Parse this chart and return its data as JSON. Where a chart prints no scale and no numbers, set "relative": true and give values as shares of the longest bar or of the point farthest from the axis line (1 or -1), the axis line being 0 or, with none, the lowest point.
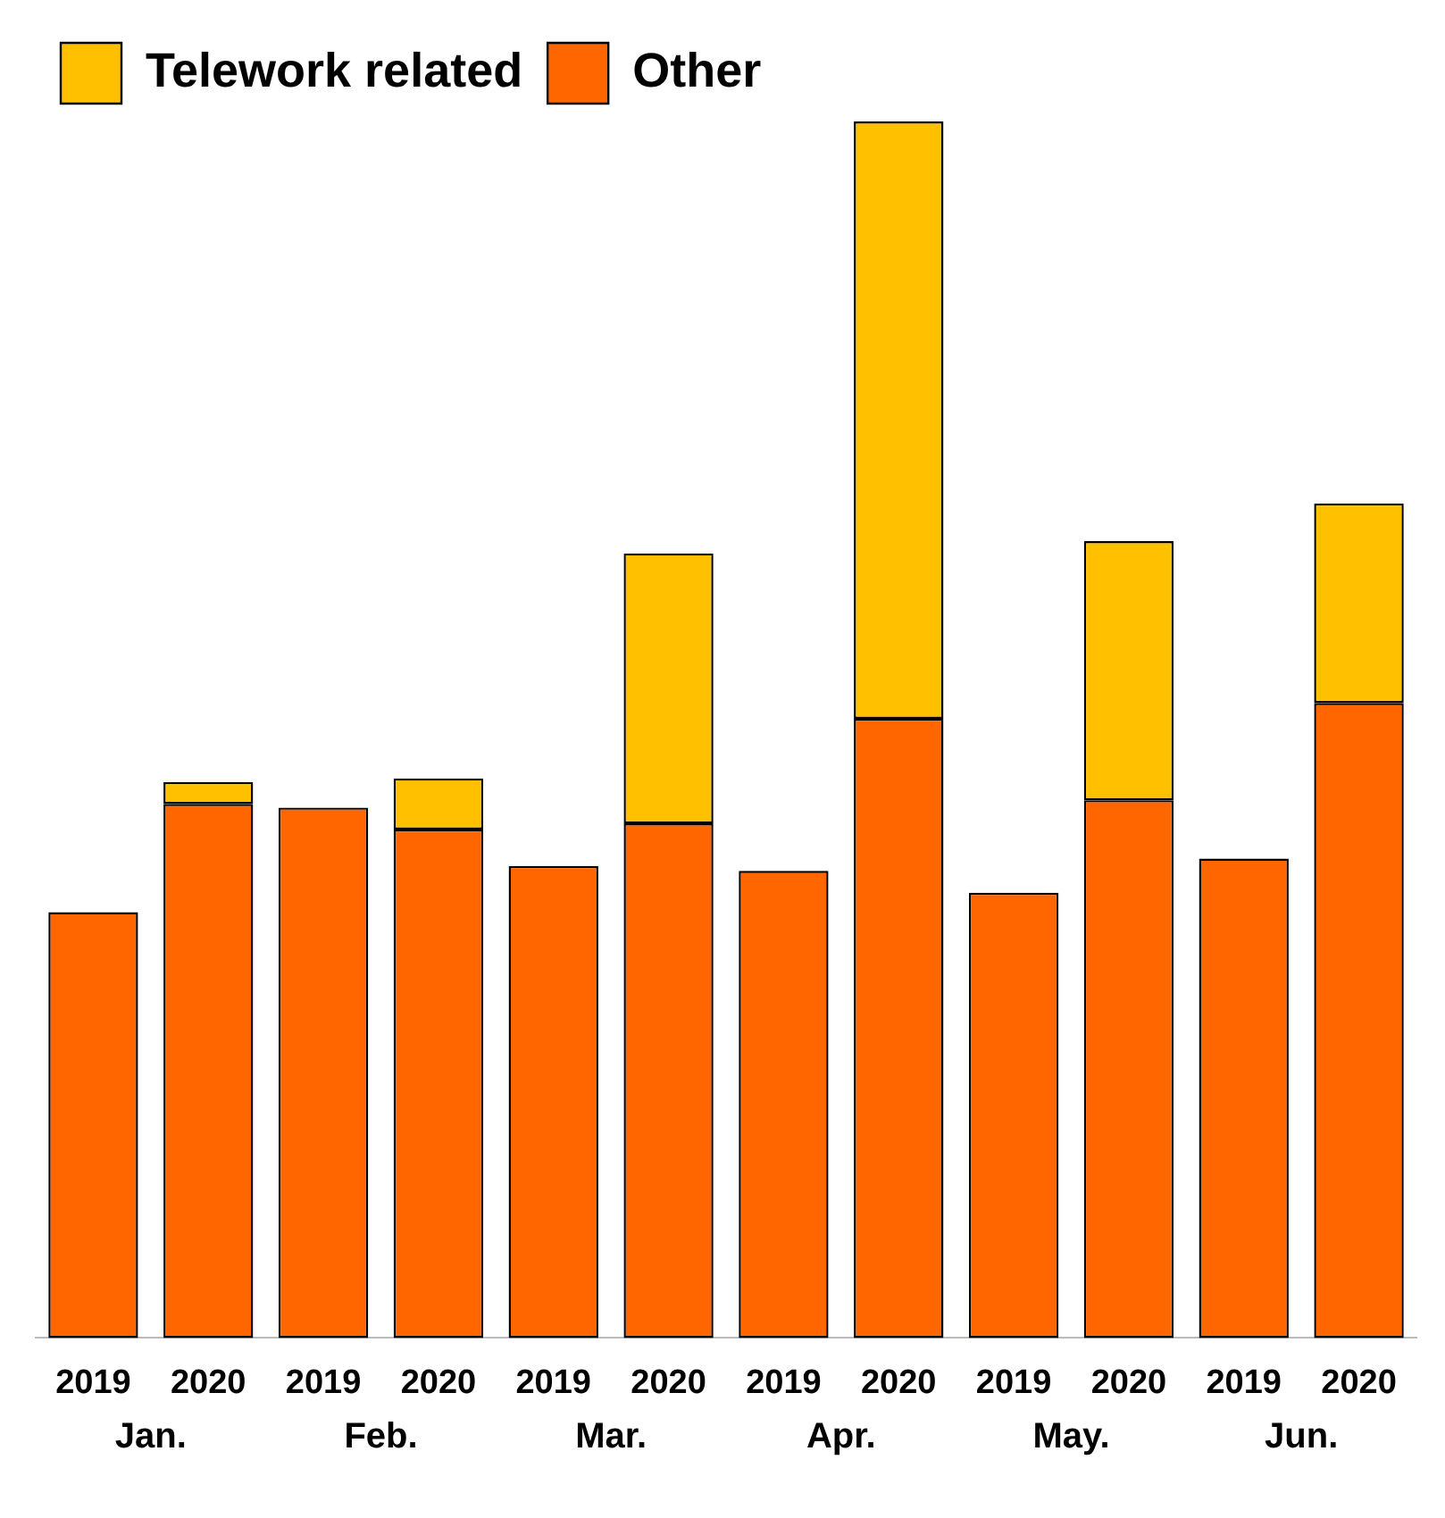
{
  "chart_data": {
    "type": "bar",
    "stacked": true,
    "relative": true,
    "legend": "top left",
    "categories": [
      "2019",
      "2020",
      "2019",
      "2020",
      "2019",
      "2020",
      "2019",
      "2020",
      "2019",
      "2020",
      "2019",
      "2020"
    ],
    "series": [
      {
        "name": "Other",
        "color": "#ff6600",
        "values": [
          0.35,
          0.439,
          0.436,
          0.418,
          0.388,
          0.423,
          0.384,
          0.509,
          0.366,
          0.442,
          0.394,
          0.522
        ]
      },
      {
        "name": "Telework related",
        "color": "#ffc000",
        "values": [
          null,
          0.018,
          null,
          0.042,
          null,
          0.222,
          null,
          0.491,
          null,
          0.213,
          null,
          0.164
        ]
      }
    ],
    "annotations": [
      "Jan.",
      "Feb.",
      "Mar.",
      "Apr.",
      "May.",
      "Jun."
    ],
    "grid": false
  }
}
